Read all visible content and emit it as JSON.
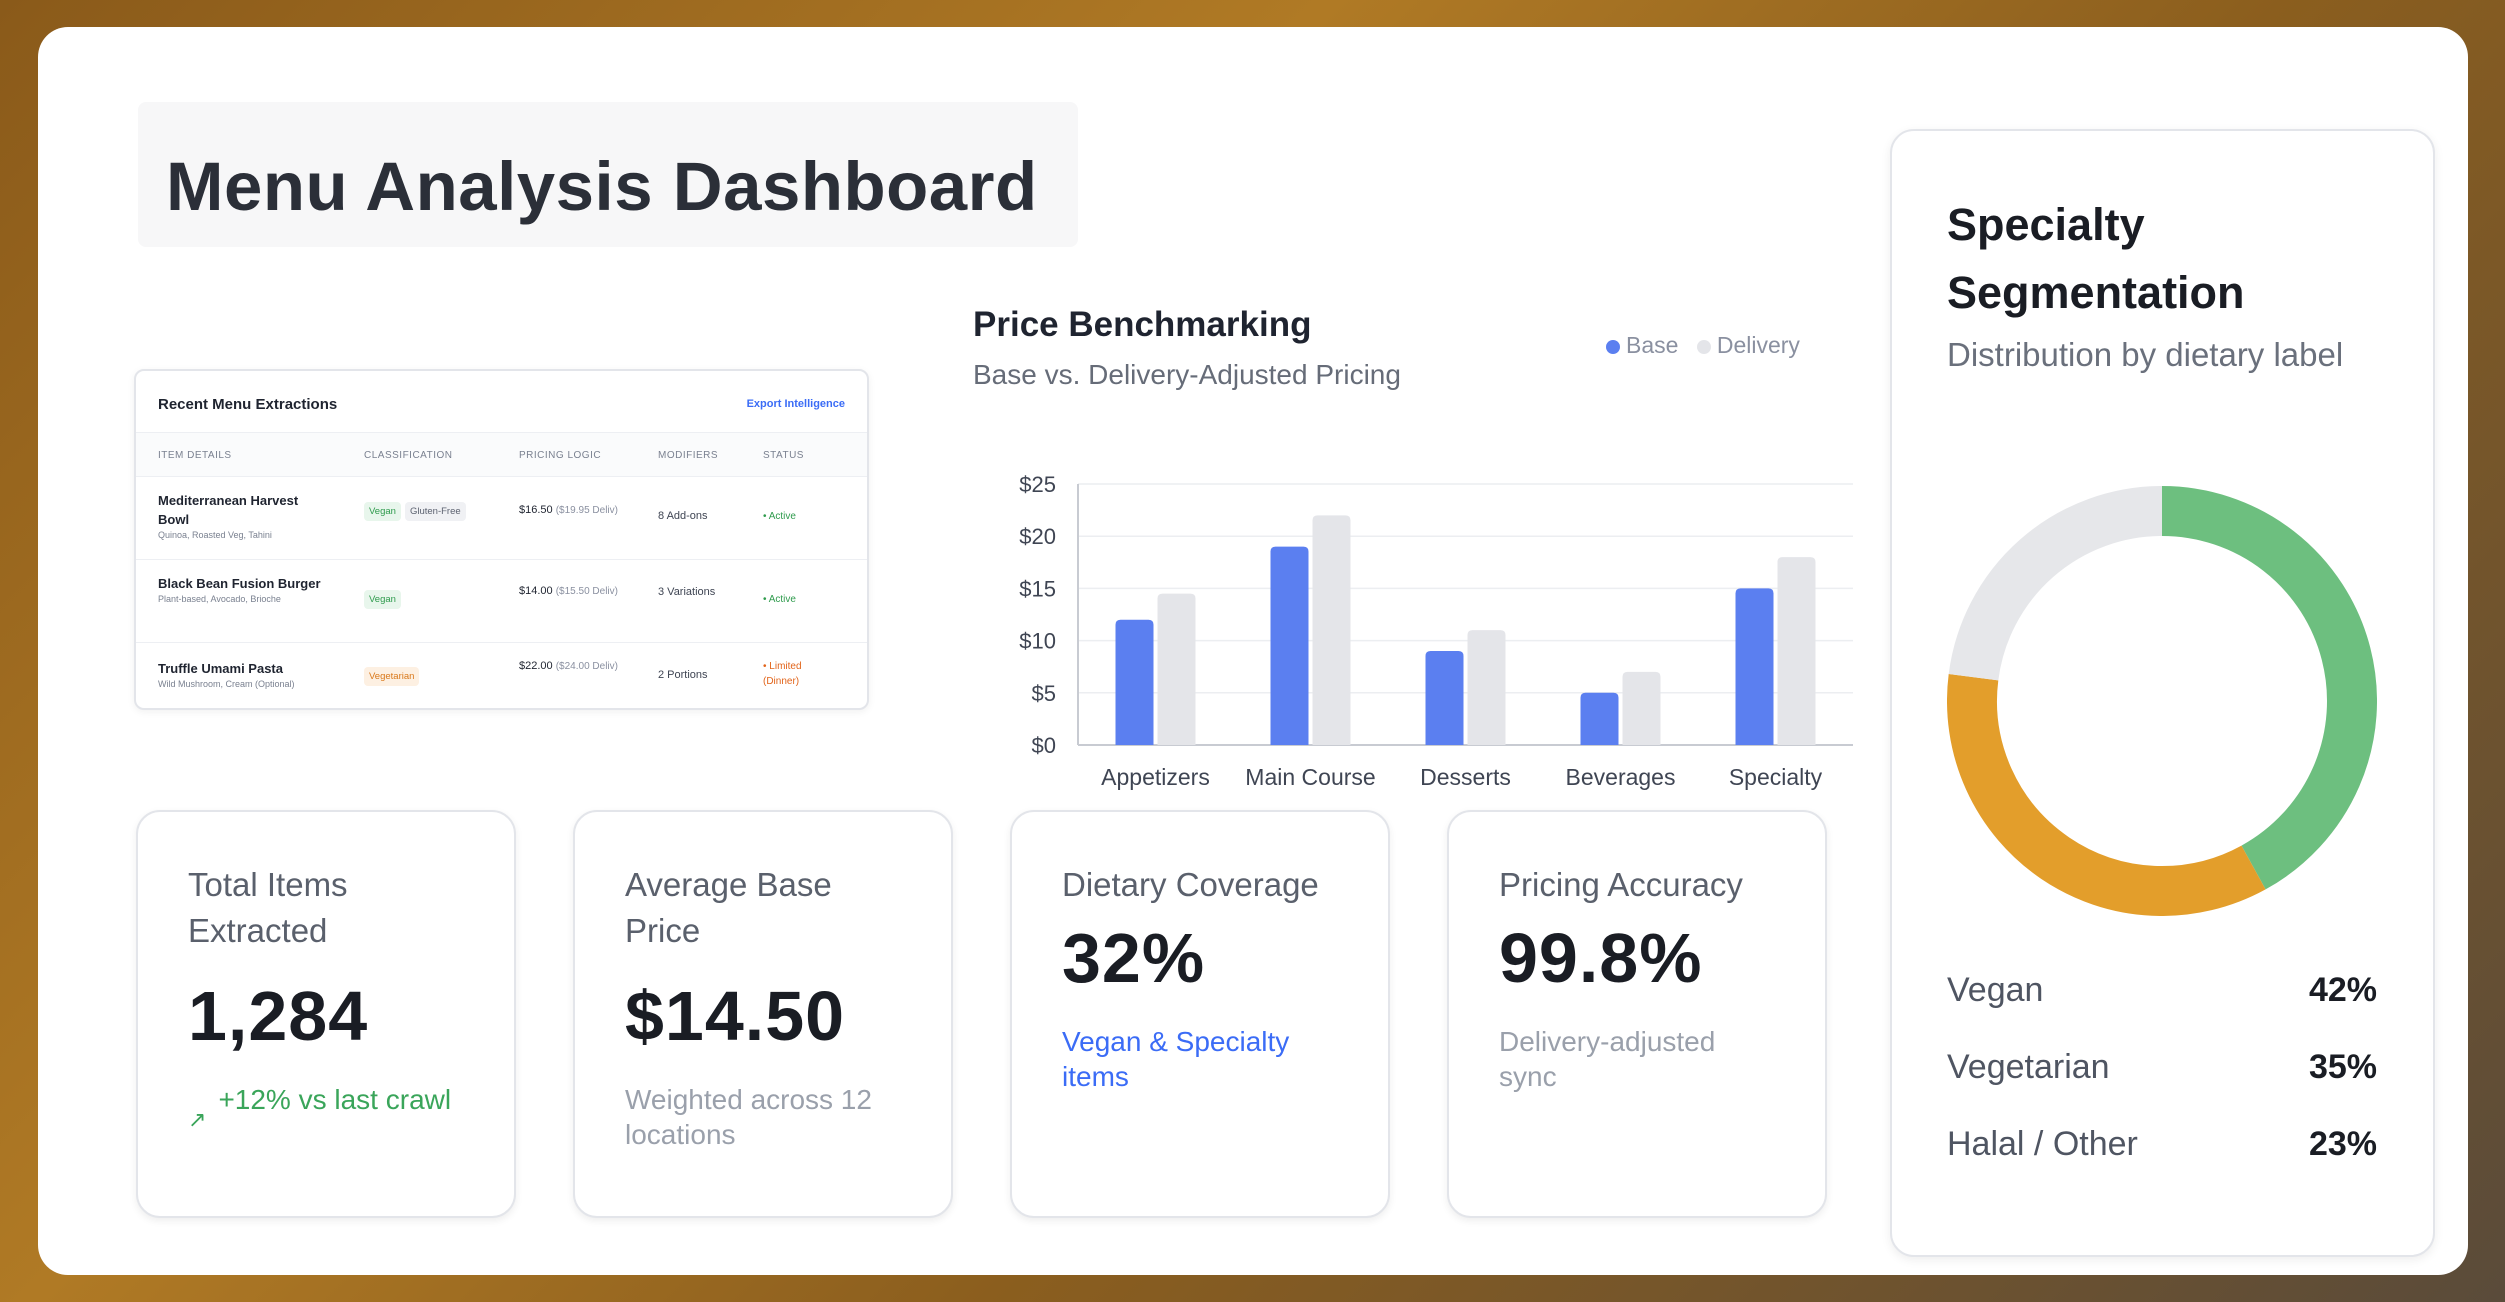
{
  "page_title": "Menu Analysis Dashboard",
  "extractions": {
    "title": "Recent Menu Extractions",
    "export_label": "Export Intelligence",
    "columns": [
      "ITEM DETAILS",
      "CLASSIFICATION",
      "PRICING LOGIC",
      "MODIFIERS",
      "STATUS"
    ],
    "rows": [
      {
        "name": "Mediterranean Harvest Bowl",
        "sub": "Quinoa, Roasted Veg, Tahini",
        "tags": [
          {
            "text": "Vegan",
            "style": "green"
          },
          {
            "text": "Gluten-Free",
            "style": "gray"
          }
        ],
        "price": "$16.50",
        "price_delivery": "($19.95 Deliv)",
        "modifiers": "8 Add-ons",
        "status": "• Active",
        "status_kind": "ok"
      },
      {
        "name": "Black Bean Fusion Burger",
        "sub": "Plant-based, Avocado, Brioche",
        "tags": [
          {
            "text": "Vegan",
            "style": "green"
          }
        ],
        "price": "$14.00",
        "price_delivery": "($15.50 Deliv)",
        "modifiers": "3 Variations",
        "status": "• Active",
        "status_kind": "ok"
      },
      {
        "name": "Truffle Umami Pasta",
        "sub": "Wild Mushroom, Cream (Optional)",
        "tags": [
          {
            "text": "Vegetarian",
            "style": "orange"
          }
        ],
        "price": "$22.00",
        "price_delivery": "($24.00 Deliv)",
        "modifiers": "2 Portions",
        "status": "• Limited (Dinner)",
        "status_kind": "warn"
      }
    ]
  },
  "price_chart": {
    "title": "Price Benchmarking",
    "subtitle": "Base vs. Delivery-Adjusted Pricing",
    "legend": [
      {
        "label": "Base",
        "color": "#5b7ff0"
      },
      {
        "label": "Delivery",
        "color": "#e4e5e9"
      }
    ]
  },
  "chart_data": {
    "type": "bar",
    "categories": [
      "Appetizers",
      "Main Course",
      "Desserts",
      "Beverages",
      "Specialty"
    ],
    "series": [
      {
        "name": "Base",
        "values": [
          12,
          19,
          9,
          5,
          15
        ],
        "color": "#5b7ff0"
      },
      {
        "name": "Delivery",
        "values": [
          14.5,
          22,
          11,
          7,
          18
        ],
        "color": "#e4e5e9"
      }
    ],
    "ylim": [
      0,
      25
    ],
    "y_ticks": [
      0,
      5,
      10,
      15,
      20,
      25
    ],
    "y_tick_labels": [
      "$0",
      "$5",
      "$10",
      "$15",
      "$20",
      "$25"
    ],
    "grid": true,
    "legend_position": "top-right"
  },
  "stats": [
    {
      "label": "Total Items Extracted",
      "value": "1,284",
      "note": "+12% vs last crawl",
      "note_kind": "green",
      "note_icon": "arrow-up-right-icon"
    },
    {
      "label": "Average Base Price",
      "value": "$14.50",
      "note": "Weighted across 12 locations",
      "note_kind": "gray"
    },
    {
      "label": "Dietary Coverage",
      "value": "32%",
      "note": "Vegan & Specialty items",
      "note_kind": "blue"
    },
    {
      "label": "Pricing Accuracy",
      "value": "99.8%",
      "note": "Delivery-adjusted sync",
      "note_kind": "gray"
    }
  ],
  "segmentation": {
    "title": "Specialty Segmentation",
    "subtitle": "Distribution by dietary label",
    "items": [
      {
        "label": "Vegan",
        "pct_text": "42%",
        "value": 42,
        "color": "#6dbf7f"
      },
      {
        "label": "Vegetarian",
        "pct_text": "35%",
        "value": 35,
        "color": "#e39e2b"
      },
      {
        "label": "Halal / Other",
        "pct_text": "23%",
        "value": 23,
        "color": "#e6e7ea"
      }
    ]
  }
}
